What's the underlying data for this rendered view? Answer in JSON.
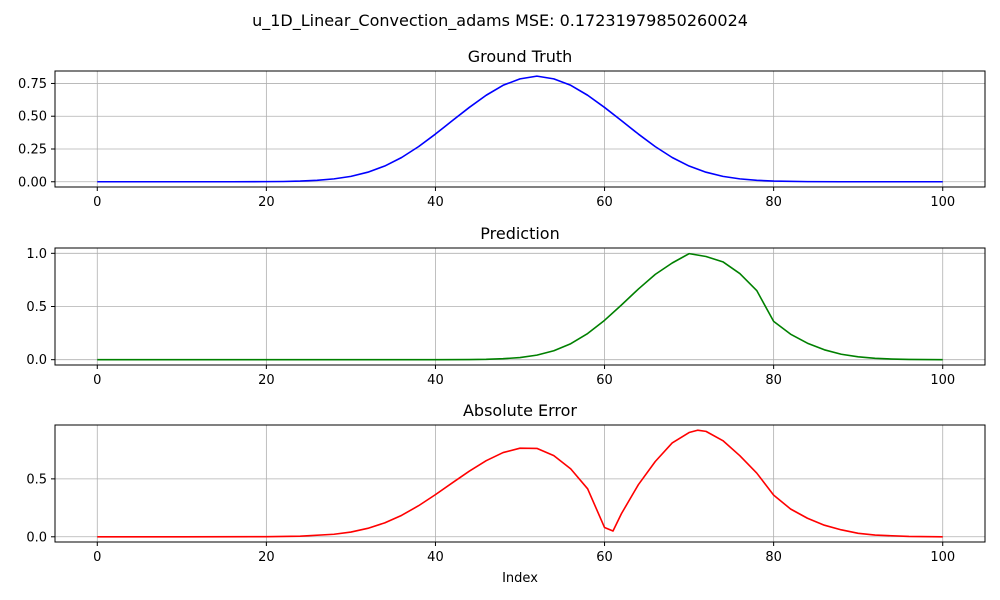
{
  "figure": {
    "suptitle": "u_1D_Linear_Convection_adams MSE: 0.17231979850260024"
  },
  "chart_data": [
    {
      "type": "line",
      "title": "Ground Truth",
      "xlabel": "",
      "ylabel": "",
      "xlim": [
        -5,
        105
      ],
      "ylim": [
        -0.04,
        0.845
      ],
      "xticks": [
        0,
        20,
        40,
        60,
        80,
        100
      ],
      "xtick_labels": [
        "0",
        "20",
        "40",
        "60",
        "80",
        "100"
      ],
      "yticks": [
        0,
        0.25,
        0.5,
        0.75
      ],
      "ytick_labels": [
        "0.00",
        "0.25",
        "0.50",
        "0.75"
      ],
      "grid": true,
      "series": [
        {
          "color": "#0000ff",
          "x": [
            0,
            4,
            8,
            12,
            16,
            20,
            22,
            24,
            26,
            28,
            30,
            32,
            34,
            36,
            38,
            40,
            42,
            44,
            46,
            48,
            50,
            52,
            54,
            56,
            58,
            60,
            62,
            64,
            66,
            68,
            70,
            72,
            74,
            76,
            78,
            80,
            84,
            88,
            92,
            96,
            100
          ],
          "y": [
            0,
            0,
            0,
            0,
            0,
            0.001,
            0.002,
            0.005,
            0.011,
            0.022,
            0.041,
            0.073,
            0.12,
            0.185,
            0.268,
            0.364,
            0.466,
            0.567,
            0.66,
            0.736,
            0.785,
            0.806,
            0.785,
            0.736,
            0.66,
            0.567,
            0.466,
            0.364,
            0.268,
            0.185,
            0.12,
            0.073,
            0.041,
            0.022,
            0.011,
            0.005,
            0.001,
            0,
            0,
            0,
            0
          ]
        }
      ]
    },
    {
      "type": "line",
      "title": "Prediction",
      "xlabel": "",
      "ylabel": "",
      "xlim": [
        -5,
        105
      ],
      "ylim": [
        -0.05,
        1.05
      ],
      "xticks": [
        0,
        20,
        40,
        60,
        80,
        100
      ],
      "xtick_labels": [
        "0",
        "20",
        "40",
        "60",
        "80",
        "100"
      ],
      "yticks": [
        0,
        0.5,
        1.0
      ],
      "ytick_labels": [
        "0.0",
        "0.5",
        "1.0"
      ],
      "grid": true,
      "series": [
        {
          "color": "#008000",
          "x": [
            0,
            10,
            20,
            30,
            40,
            44,
            46,
            48,
            50,
            52,
            54,
            56,
            58,
            60,
            62,
            64,
            66,
            68,
            70,
            72,
            74,
            76,
            78,
            80,
            82,
            84,
            86,
            88,
            90,
            92,
            94,
            96,
            100
          ],
          "y": [
            0,
            0,
            0,
            0,
            0,
            0.001,
            0.003,
            0.009,
            0.02,
            0.043,
            0.084,
            0.15,
            0.246,
            0.37,
            0.514,
            0.664,
            0.802,
            0.909,
            0.997,
            0.97,
            0.92,
            0.81,
            0.65,
            0.36,
            0.24,
            0.155,
            0.093,
            0.051,
            0.027,
            0.013,
            0.006,
            0.002,
            0
          ]
        }
      ]
    },
    {
      "type": "line",
      "title": "Absolute Error",
      "xlabel": "Index",
      "ylabel": "",
      "xlim": [
        -5,
        105
      ],
      "ylim": [
        -0.045,
        0.965
      ],
      "xticks": [
        0,
        20,
        40,
        60,
        80,
        100
      ],
      "xtick_labels": [
        "0",
        "20",
        "40",
        "60",
        "80",
        "100"
      ],
      "yticks": [
        0,
        0.5
      ],
      "ytick_labels": [
        "0.0",
        "0.5"
      ],
      "grid": true,
      "series": [
        {
          "color": "#ff0000",
          "x": [
            0,
            10,
            20,
            24,
            28,
            30,
            32,
            34,
            36,
            38,
            40,
            42,
            44,
            46,
            48,
            50,
            52,
            54,
            56,
            58,
            60,
            61,
            62,
            64,
            66,
            68,
            70,
            71,
            72,
            74,
            76,
            78,
            80,
            82,
            84,
            86,
            88,
            90,
            92,
            96,
            100
          ],
          "y": [
            0,
            0,
            0.001,
            0.005,
            0.022,
            0.041,
            0.073,
            0.12,
            0.185,
            0.268,
            0.364,
            0.466,
            0.566,
            0.657,
            0.727,
            0.765,
            0.763,
            0.701,
            0.586,
            0.414,
            0.08,
            0.05,
            0.2,
            0.45,
            0.65,
            0.81,
            0.9,
            0.92,
            0.91,
            0.83,
            0.7,
            0.55,
            0.36,
            0.24,
            0.16,
            0.1,
            0.06,
            0.03,
            0.015,
            0.003,
            0
          ]
        }
      ]
    }
  ]
}
